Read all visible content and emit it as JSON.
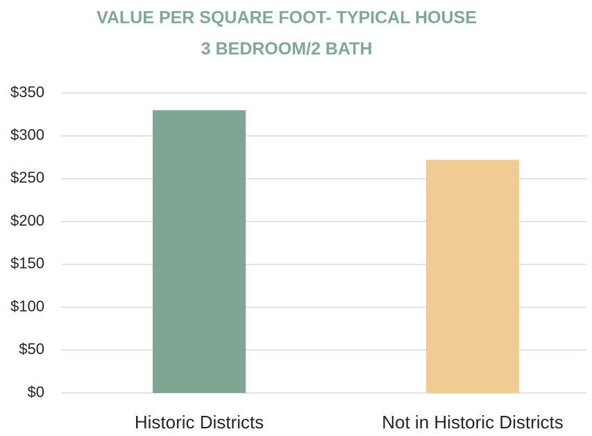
{
  "chart_data": {
    "type": "bar",
    "title": "VALUE PER SQUARE FOOT- TYPICAL HOUSE",
    "subtitle": "3 BEDROOM/2 BATH",
    "categories": [
      "Historic Districts",
      "Not in Historic Districts"
    ],
    "values": [
      330,
      272
    ],
    "colors": [
      "#7fa595",
      "#f0cb94"
    ],
    "ylim": [
      0,
      350
    ],
    "yticks": [
      {
        "value": 0,
        "label": "$0"
      },
      {
        "value": 50,
        "label": "$50"
      },
      {
        "value": 100,
        "label": "$100"
      },
      {
        "value": 150,
        "label": "$150"
      },
      {
        "value": 200,
        "label": "$200"
      },
      {
        "value": 250,
        "label": "$250"
      },
      {
        "value": 300,
        "label": "$300"
      },
      {
        "value": 350,
        "label": "$350"
      }
    ],
    "grid": true
  }
}
